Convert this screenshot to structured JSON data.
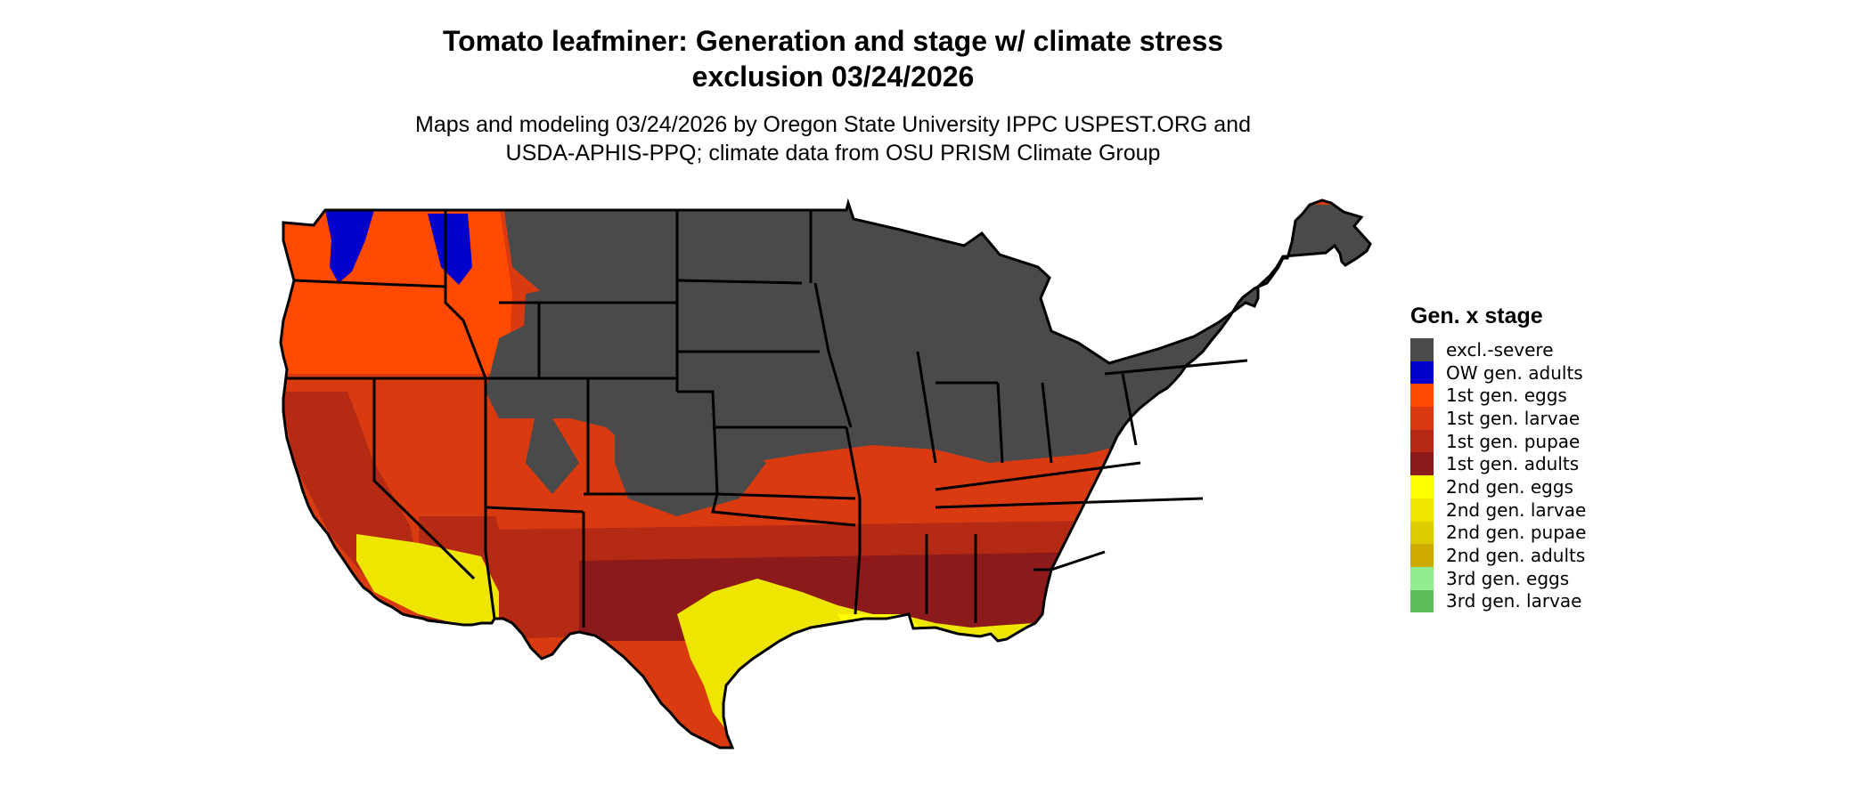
{
  "title_line1": "Tomato leafminer: Generation and stage w/ climate stress",
  "title_line2": "exclusion 03/24/2026",
  "subtitle_line1": "Maps and modeling 03/24/2026 by Oregon State University IPPC USPEST.ORG and",
  "subtitle_line2": "USDA-APHIS-PPQ; climate data from OSU PRISM Climate Group",
  "legend": {
    "title": "Gen. x stage",
    "items": [
      {
        "label": "excl.-severe",
        "color": "#4a4a4a"
      },
      {
        "label": "OW gen. adults",
        "color": "#0000cc"
      },
      {
        "label": "1st gen. eggs",
        "color": "#ff4a00"
      },
      {
        "label": "1st gen. larvae",
        "color": "#d93a10"
      },
      {
        "label": "1st gen. pupae",
        "color": "#b42a14"
      },
      {
        "label": "1st gen. adults",
        "color": "#8c1a1a"
      },
      {
        "label": "2nd gen. eggs",
        "color": "#ffff00"
      },
      {
        "label": "2nd gen. larvae",
        "color": "#eee600"
      },
      {
        "label": "2nd gen. pupae",
        "color": "#ddcc00"
      },
      {
        "label": "2nd gen. adults",
        "color": "#ccaa00"
      },
      {
        "label": "3rd gen. eggs",
        "color": "#90ee90"
      },
      {
        "label": "3rd gen. larvae",
        "color": "#5cbf5c"
      }
    ]
  }
}
